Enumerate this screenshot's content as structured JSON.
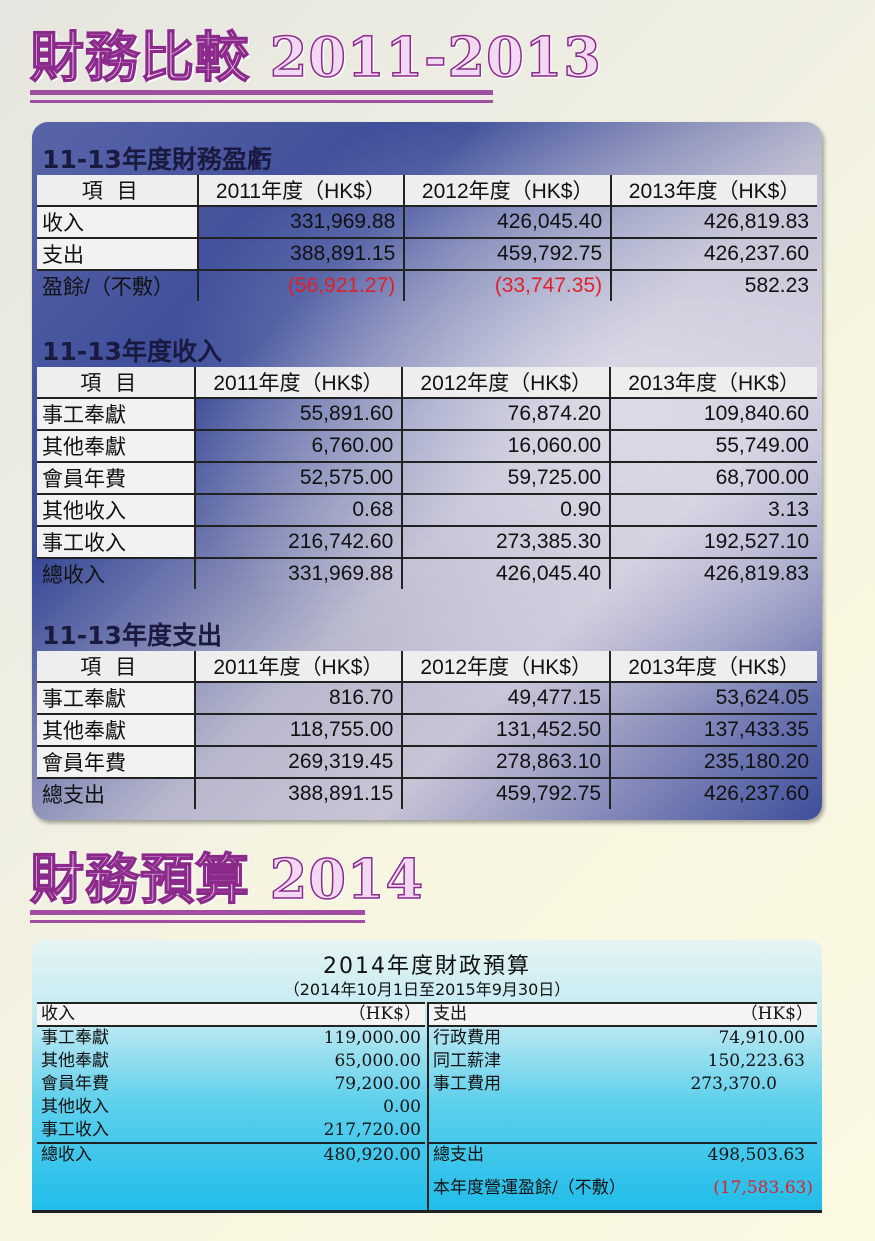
{
  "heading1": "財務比較 2011-2013",
  "heading2": "財務預算 2014",
  "compare": {
    "col_item": "項目",
    "years": [
      "2011年度（HK$）",
      "2012年度（HK$）",
      "2013年度（HK$）"
    ],
    "pl": {
      "title": "11-13年度財務盈虧",
      "rows": [
        {
          "label": "收入",
          "v": [
            "331,969.88",
            "426,045.40",
            "426,819.83"
          ]
        },
        {
          "label": "支出",
          "v": [
            "388,891.15",
            "459,792.75",
            "426,237.60"
          ]
        }
      ],
      "total": {
        "label": "盈餘/（不敷）",
        "v": [
          "(56,921.27)",
          "(33,747.35)",
          "582.23"
        ]
      }
    },
    "income": {
      "title": "11-13年度收入",
      "rows": [
        {
          "label": "事工奉獻",
          "v": [
            "55,891.60",
            "76,874.20",
            "109,840.60"
          ]
        },
        {
          "label": "其他奉獻",
          "v": [
            "6,760.00",
            "16,060.00",
            "55,749.00"
          ]
        },
        {
          "label": "會員年費",
          "v": [
            "52,575.00",
            "59,725.00",
            "68,700.00"
          ]
        },
        {
          "label": "其他收入",
          "v": [
            "0.68",
            "0.90",
            "3.13"
          ]
        },
        {
          "label": "事工收入",
          "v": [
            "216,742.60",
            "273,385.30",
            "192,527.10"
          ]
        }
      ],
      "total": {
        "label": "總收入",
        "v": [
          "331,969.88",
          "426,045.40",
          "426,819.83"
        ]
      }
    },
    "expense": {
      "title": "11-13年度支出",
      "rows": [
        {
          "label": "事工奉獻",
          "v": [
            "816.70",
            "49,477.15",
            "53,624.05"
          ]
        },
        {
          "label": "其他奉獻",
          "v": [
            "118,755.00",
            "131,452.50",
            "137,433.35"
          ]
        },
        {
          "label": "會員年費",
          "v": [
            "269,319.45",
            "278,863.10",
            "235,180.20"
          ]
        }
      ],
      "total": {
        "label": "總支出",
        "v": [
          "388,891.15",
          "459,792.75",
          "426,237.60"
        ]
      }
    }
  },
  "budget": {
    "title": "2014年度財政預算",
    "period": "（2014年10月1日至2015年9月30日）",
    "income": {
      "head": "收入",
      "unit": "（HK$）",
      "rows": [
        {
          "label": "事工奉獻",
          "v": "119,000.00"
        },
        {
          "label": "其他奉獻",
          "v": "65,000.00"
        },
        {
          "label": "會員年費",
          "v": "79,200.00"
        },
        {
          "label": "其他收入",
          "v": "0.00"
        },
        {
          "label": "事工收入",
          "v": "217,720.00"
        }
      ],
      "total": {
        "label": "總收入",
        "v": "480,920.00"
      }
    },
    "expense": {
      "head": "支出",
      "unit": "（HK$）",
      "rows": [
        {
          "label": "行政費用",
          "v": "74,910.00"
        },
        {
          "label": "同工薪津",
          "v": "150,223.63"
        },
        {
          "label": "事工費用",
          "v": "273,370.0"
        }
      ],
      "total": {
        "label": "總支出",
        "v": "498,503.63"
      },
      "surplus": {
        "label": "本年度營運盈餘/（不敷）",
        "v": "(17,583.63)"
      }
    }
  },
  "colors": {
    "negative": "#e0202a",
    "accent": "#a04ea2"
  }
}
